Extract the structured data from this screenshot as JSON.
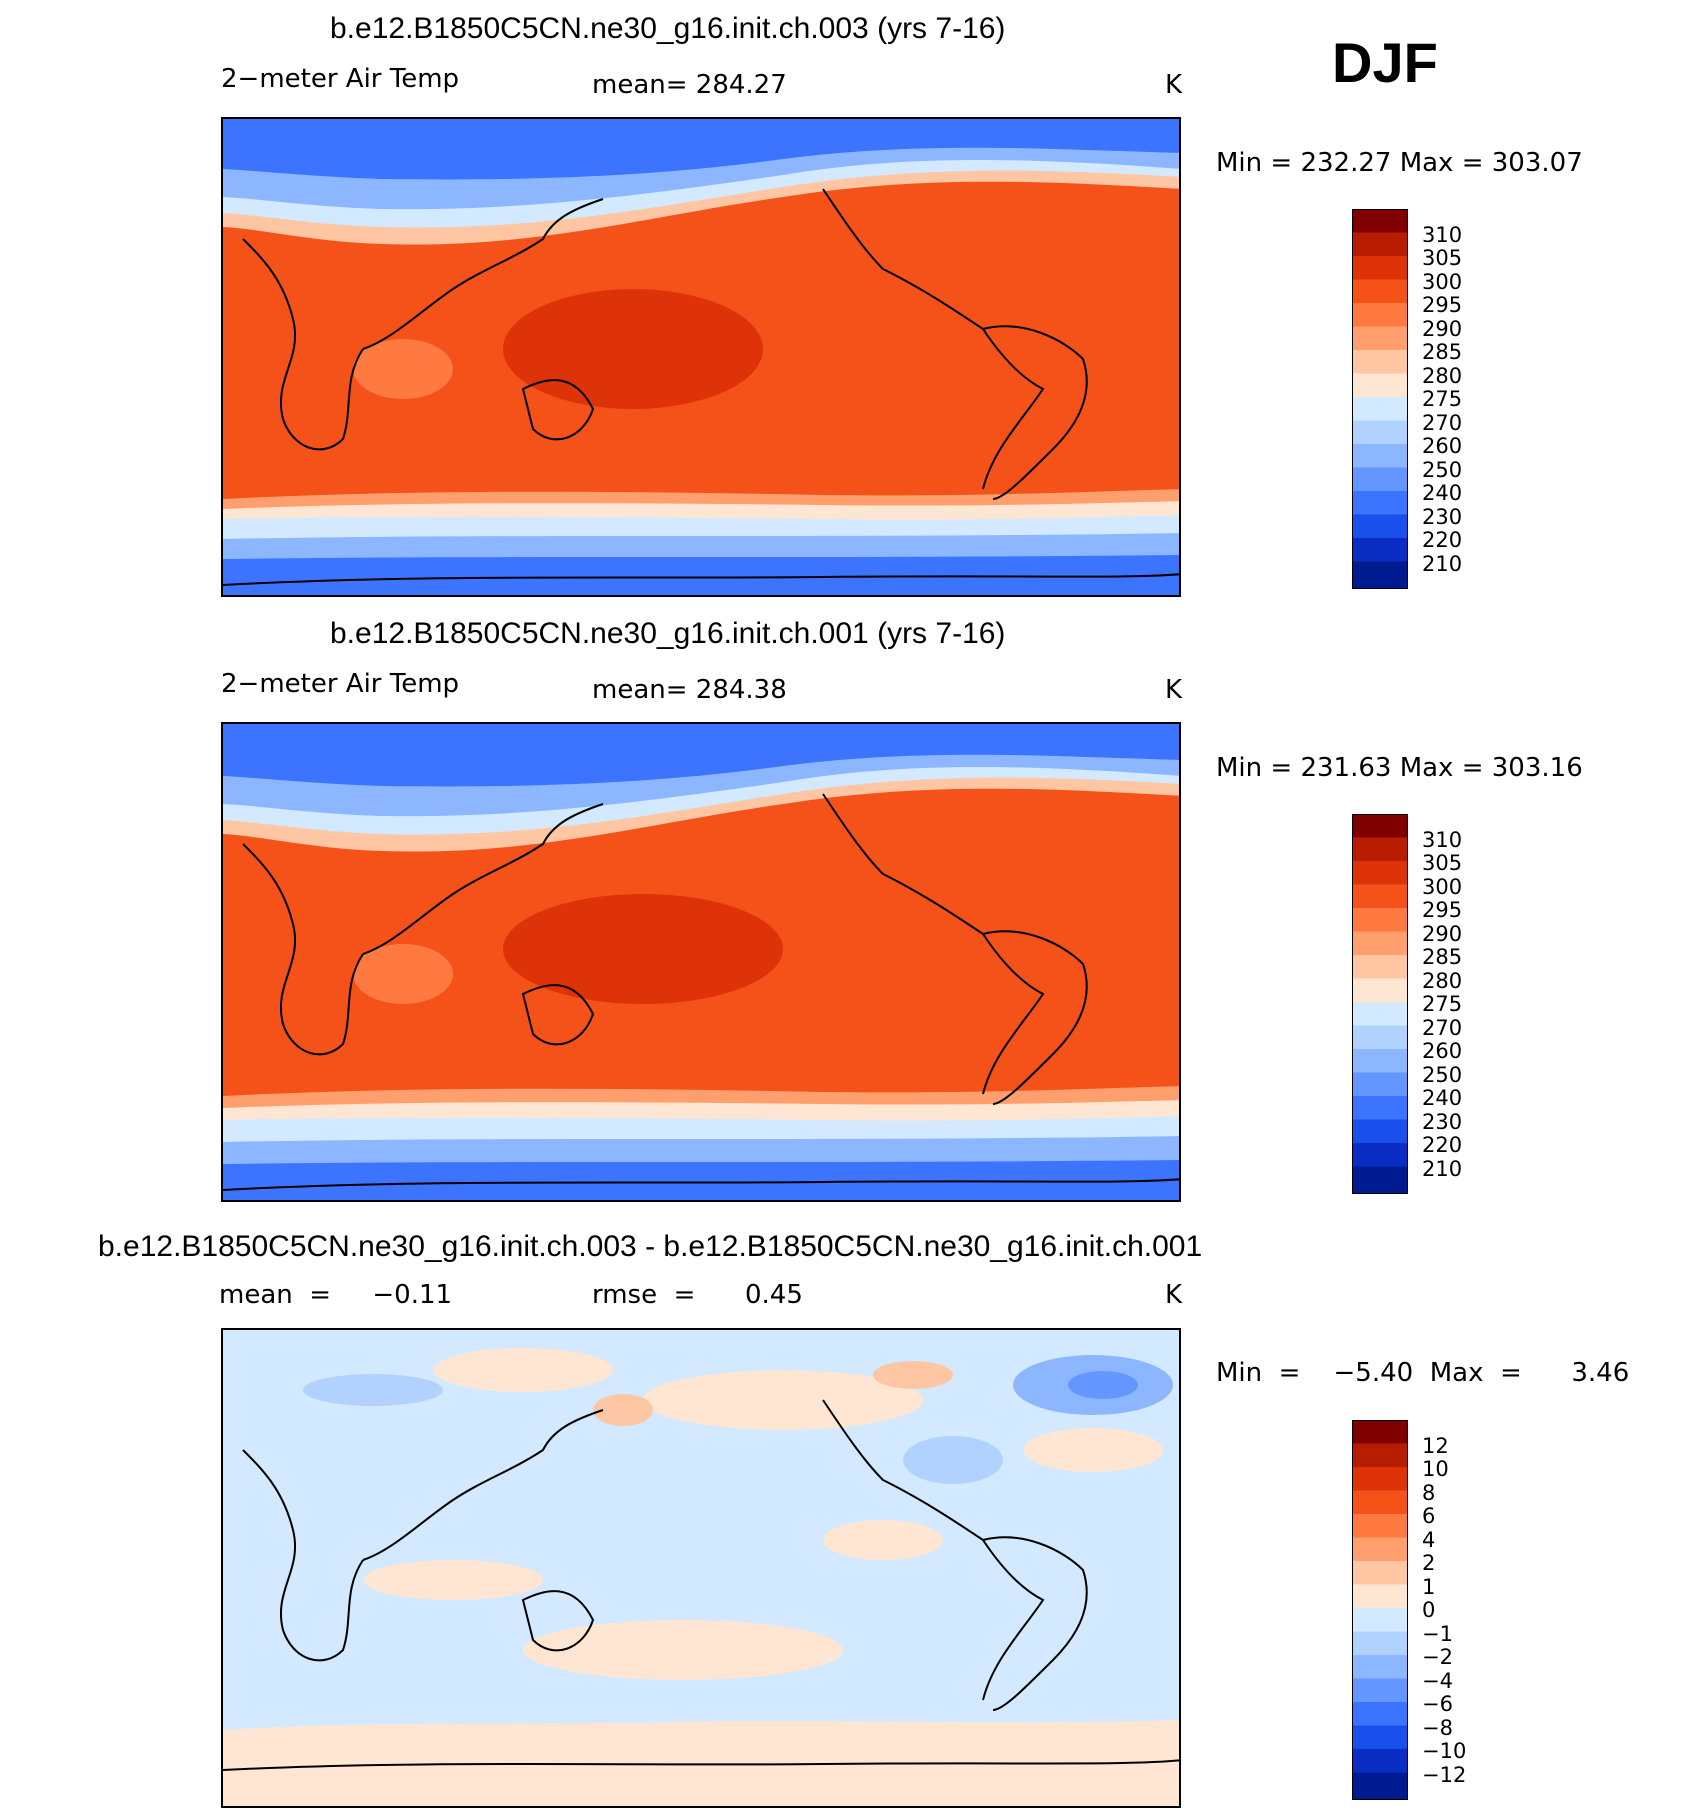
{
  "season": "DJF",
  "panels": [
    {
      "title": "b.e12.B1850C5CN.ne30_g16.init.ch.003 (yrs 7-16)",
      "left_label": "2−meter Air Temp",
      "center_label": "mean=  284.27",
      "units": "K",
      "minmax": "Min  =  232.27  Max  =  303.07",
      "legend_labels": [
        "310",
        "305",
        "300",
        "295",
        "290",
        "285",
        "280",
        "275",
        "270",
        "260",
        "250",
        "240",
        "230",
        "220",
        "210"
      ],
      "colors": [
        "#800000",
        "#b71c00",
        "#de3208",
        "#f55219",
        "#ff7a40",
        "#ff9f6e",
        "#ffc6a4",
        "#ffe6d2",
        "#d2e9ff",
        "#b1d2ff",
        "#8cb6ff",
        "#6496ff",
        "#3c73ff",
        "#1950ec",
        "#0a2ec4",
        "#001a8f",
        "#000080"
      ]
    },
    {
      "title": "b.e12.B1850C5CN.ne30_g16.init.ch.001 (yrs 7-16)",
      "left_label": "2−meter Air Temp",
      "center_label": "mean=  284.38",
      "units": "K",
      "minmax": "Min  =  231.63  Max  =  303.16",
      "legend_labels": [
        "310",
        "305",
        "300",
        "295",
        "290",
        "285",
        "280",
        "275",
        "270",
        "260",
        "250",
        "240",
        "230",
        "220",
        "210"
      ],
      "colors": [
        "#800000",
        "#b71c00",
        "#de3208",
        "#f55219",
        "#ff7a40",
        "#ff9f6e",
        "#ffc6a4",
        "#ffe6d2",
        "#d2e9ff",
        "#b1d2ff",
        "#8cb6ff",
        "#6496ff",
        "#3c73ff",
        "#1950ec",
        "#0a2ec4",
        "#001a8f",
        "#000080"
      ]
    },
    {
      "title": "b.e12.B1850C5CN.ne30_g16.init.ch.003 - b.e12.B1850C5CN.ne30_g16.init.ch.001",
      "left_label": "mean  =     −0.11",
      "center_label": "rmse  =      0.45",
      "units": "K",
      "minmax": "Min  =    −5.40  Max  =      3.46",
      "legend_labels": [
        "12",
        "10",
        "8",
        "6",
        "4",
        "2",
        "1",
        "0",
        "−1",
        "−2",
        "−4",
        "−6",
        "−8",
        "−10",
        "−12"
      ],
      "colors": [
        "#800000",
        "#b71c00",
        "#de3208",
        "#f55219",
        "#ff7a40",
        "#ff9f6e",
        "#ffc6a4",
        "#ffe6d2",
        "#d2e9ff",
        "#b1d2ff",
        "#8cb6ff",
        "#6496ff",
        "#3c73ff",
        "#1950ec",
        "#0a2ec4",
        "#001a8f",
        "#000080"
      ]
    }
  ]
}
